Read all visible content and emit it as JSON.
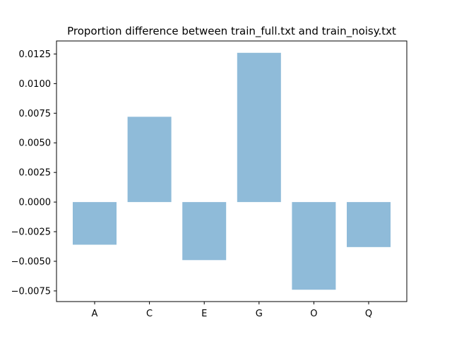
{
  "chart_data": {
    "type": "bar",
    "title": "Proportion difference between train_full.txt and train_noisy.txt",
    "xlabel": "",
    "ylabel": "",
    "categories": [
      "A",
      "C",
      "E",
      "G",
      "O",
      "Q"
    ],
    "values": [
      -0.0036,
      0.0072,
      -0.0049,
      0.0126,
      -0.0074,
      -0.0038
    ],
    "ylim": [
      -0.0084,
      0.0136
    ],
    "yticks": [
      -0.0075,
      -0.005,
      -0.0025,
      0.0,
      0.0025,
      0.005,
      0.0075,
      0.01,
      0.0125
    ],
    "ytick_labels": [
      "−0.0075",
      "−0.0050",
      "−0.0025",
      "0.0000",
      "0.0025",
      "0.0050",
      "0.0075",
      "0.0100",
      "0.0125"
    ],
    "grid": false,
    "bar_color": "#8fbbd9"
  }
}
